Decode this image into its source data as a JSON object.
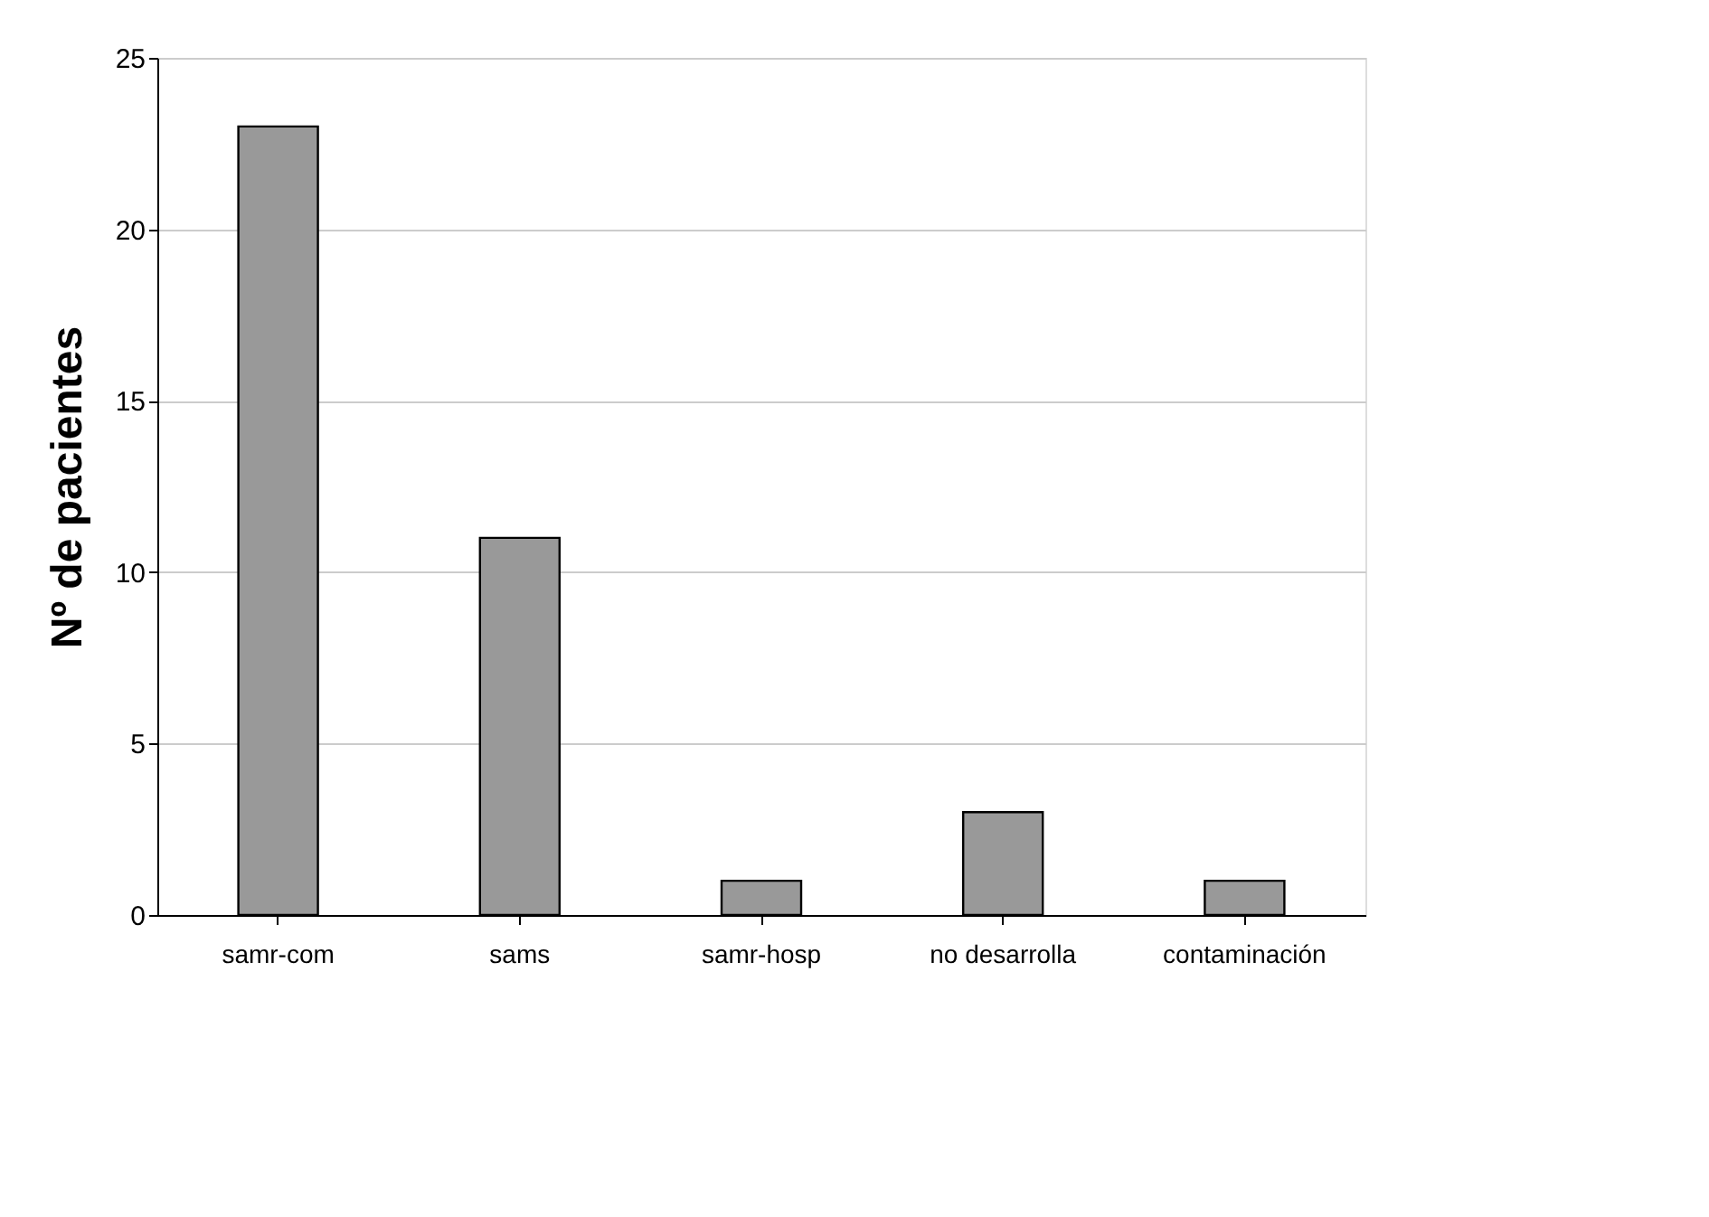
{
  "chart_data": {
    "type": "bar",
    "ylabel": "Nº de pacientes",
    "categories": [
      "samr-com",
      "sams",
      "samr-hosp",
      "no desarrolla",
      "contaminación"
    ],
    "values": [
      23,
      11,
      1,
      3,
      1
    ],
    "color": "#999999",
    "ylim": [
      0,
      25
    ],
    "yticks": [
      0,
      5,
      10,
      15,
      20,
      25
    ],
    "grid": "y"
  }
}
